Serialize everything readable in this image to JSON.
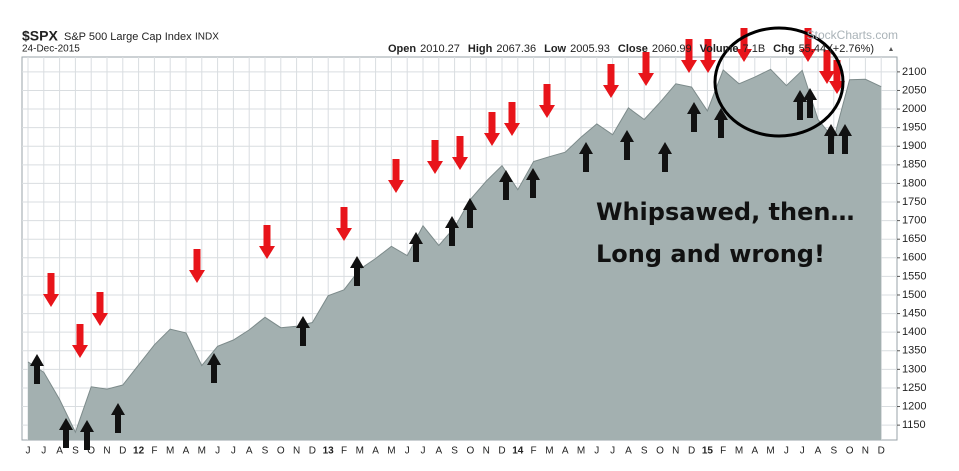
{
  "chart_data": {
    "type": "area",
    "title": "$SPX",
    "subtitle": "S&P 500 Large Cap Index",
    "exchange": "INDX",
    "date": "24-Dec-2015",
    "quote": [
      {
        "label": "Open",
        "value": "2010.27"
      },
      {
        "label": "High",
        "value": "2067.36"
      },
      {
        "label": "Low",
        "value": "2005.93"
      },
      {
        "label": "Close",
        "value": "2060.99"
      },
      {
        "label": "Volume",
        "value": "7.1B"
      },
      {
        "label": "Chg",
        "value": "55.44 (+2.76%)"
      }
    ],
    "watermark": "StockCharts.com",
    "annotations": [
      "Whipsawed, then…",
      "Long and wrong!"
    ],
    "categories": [
      "J",
      "J",
      "A",
      "S",
      "O",
      "N",
      "D",
      "12",
      "F",
      "M",
      "A",
      "M",
      "J",
      "J",
      "A",
      "S",
      "O",
      "N",
      "D",
      "13",
      "F",
      "M",
      "A",
      "M",
      "J",
      "J",
      "A",
      "S",
      "O",
      "N",
      "D",
      "14",
      "F",
      "M",
      "A",
      "M",
      "J",
      "J",
      "A",
      "S",
      "O",
      "N",
      "D",
      "15",
      "F",
      "M",
      "A",
      "M",
      "J",
      "J",
      "A",
      "S",
      "O",
      "N",
      "D"
    ],
    "values": [
      1320,
      1292,
      1219,
      1131,
      1253,
      1247,
      1258,
      1312,
      1366,
      1408,
      1398,
      1310,
      1362,
      1379,
      1406,
      1440,
      1412,
      1416,
      1426,
      1498,
      1514,
      1569,
      1598,
      1631,
      1606,
      1686,
      1633,
      1682,
      1757,
      1806,
      1848,
      1783,
      1859,
      1872,
      1884,
      1924,
      1960,
      1931,
      2003,
      1972,
      2018,
      2068,
      2059,
      1995,
      2105,
      2068,
      2086,
      2107,
      2063,
      2104,
      1972,
      1920,
      2079,
      2080,
      2060
    ],
    "color": "#a3b0b0",
    "line_color": "#7d8b8b",
    "ylim": [
      1110,
      2140
    ],
    "yticks": [
      1150,
      1200,
      1250,
      1300,
      1350,
      1400,
      1450,
      1500,
      1550,
      1600,
      1650,
      1700,
      1750,
      1800,
      1850,
      1900,
      1950,
      2000,
      2050,
      2100
    ],
    "grid": true
  }
}
